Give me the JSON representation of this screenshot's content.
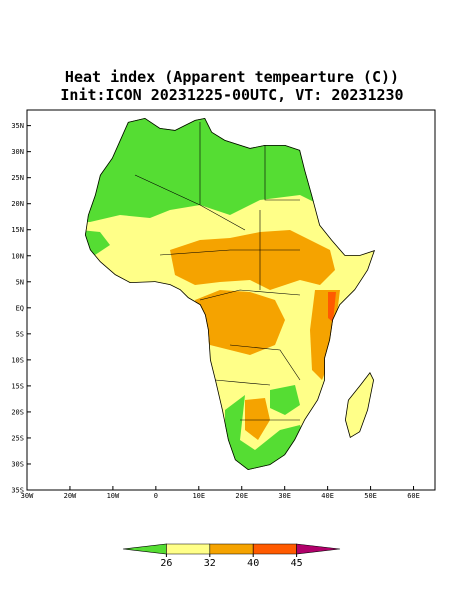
{
  "title": [
    "Heat index (Apparent tempearture (C))",
    "Init:ICON 20231225-00UTC, VT: 20231230"
  ],
  "map": {
    "xlim": [
      -30,
      65
    ],
    "ylim": [
      -35,
      38
    ],
    "lon_ticks": [
      {
        "value": -30,
        "label": "30W"
      },
      {
        "value": -20,
        "label": "20W"
      },
      {
        "value": -10,
        "label": "10W"
      },
      0,
      {
        "value": 10,
        "label": "10E"
      },
      {
        "value": 20,
        "label": "20E"
      },
      {
        "value": 30,
        "label": "30E"
      },
      {
        "value": 40,
        "label": "40E"
      },
      {
        "value": 50,
        "label": "50E"
      },
      {
        "value": 60,
        "label": "60E"
      }
    ],
    "lat_ticks": [
      {
        "value": 35,
        "label": "35N"
      },
      {
        "value": 30,
        "label": "30N"
      },
      {
        "value": 25,
        "label": "25N"
      },
      {
        "value": 20,
        "label": "20N"
      },
      {
        "value": 15,
        "label": "15N"
      },
      {
        "value": 10,
        "label": "10N"
      },
      {
        "value": 5,
        "label": "5N"
      },
      {
        "value": 0,
        "label": "EQ"
      },
      {
        "value": -5,
        "label": "5S"
      },
      {
        "value": -10,
        "label": "10S"
      },
      {
        "value": -15,
        "label": "15S"
      },
      {
        "value": -20,
        "label": "20S"
      },
      {
        "value": -25,
        "label": "25S"
      },
      {
        "value": -30,
        "label": "30S"
      },
      {
        "value": -35,
        "label": "35S"
      }
    ]
  },
  "colorbar": {
    "ticks": [
      26,
      32,
      40,
      45
    ],
    "colors": [
      "#55dd33",
      "#ffff88",
      "#f5a300",
      "#ff5a00",
      "#b0006a"
    ]
  }
}
